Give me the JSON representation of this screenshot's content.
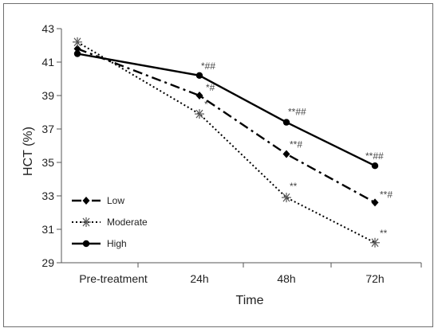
{
  "chart_data": {
    "type": "line",
    "xlabel": "Time",
    "ylabel": "HCT (%)",
    "categories": [
      "Pre-treatment",
      "24h",
      "48h",
      "72h"
    ],
    "ylim": [
      29,
      43
    ],
    "yticks": [
      29,
      31,
      33,
      35,
      37,
      39,
      41,
      43
    ],
    "grid": false,
    "legend_position": "bottom-left",
    "series": [
      {
        "name": "Low",
        "values": [
          41.8,
          39.0,
          35.5,
          32.6
        ],
        "color": "#000000",
        "line_style": "dash-dot",
        "marker": "diamond",
        "annotations": [
          "",
          "*#",
          "**#",
          "**#"
        ]
      },
      {
        "name": "Moderate",
        "values": [
          42.2,
          37.9,
          32.9,
          30.2
        ],
        "color": "#000000",
        "line_style": "dotted",
        "marker": "asterisk",
        "annotations": [
          "",
          "*",
          "**",
          "**"
        ]
      },
      {
        "name": "High",
        "values": [
          41.5,
          40.2,
          37.4,
          34.8
        ],
        "color": "#000000",
        "line_style": "solid",
        "marker": "circle",
        "annotations": [
          "",
          "*##",
          "**##",
          "**##"
        ]
      }
    ]
  }
}
